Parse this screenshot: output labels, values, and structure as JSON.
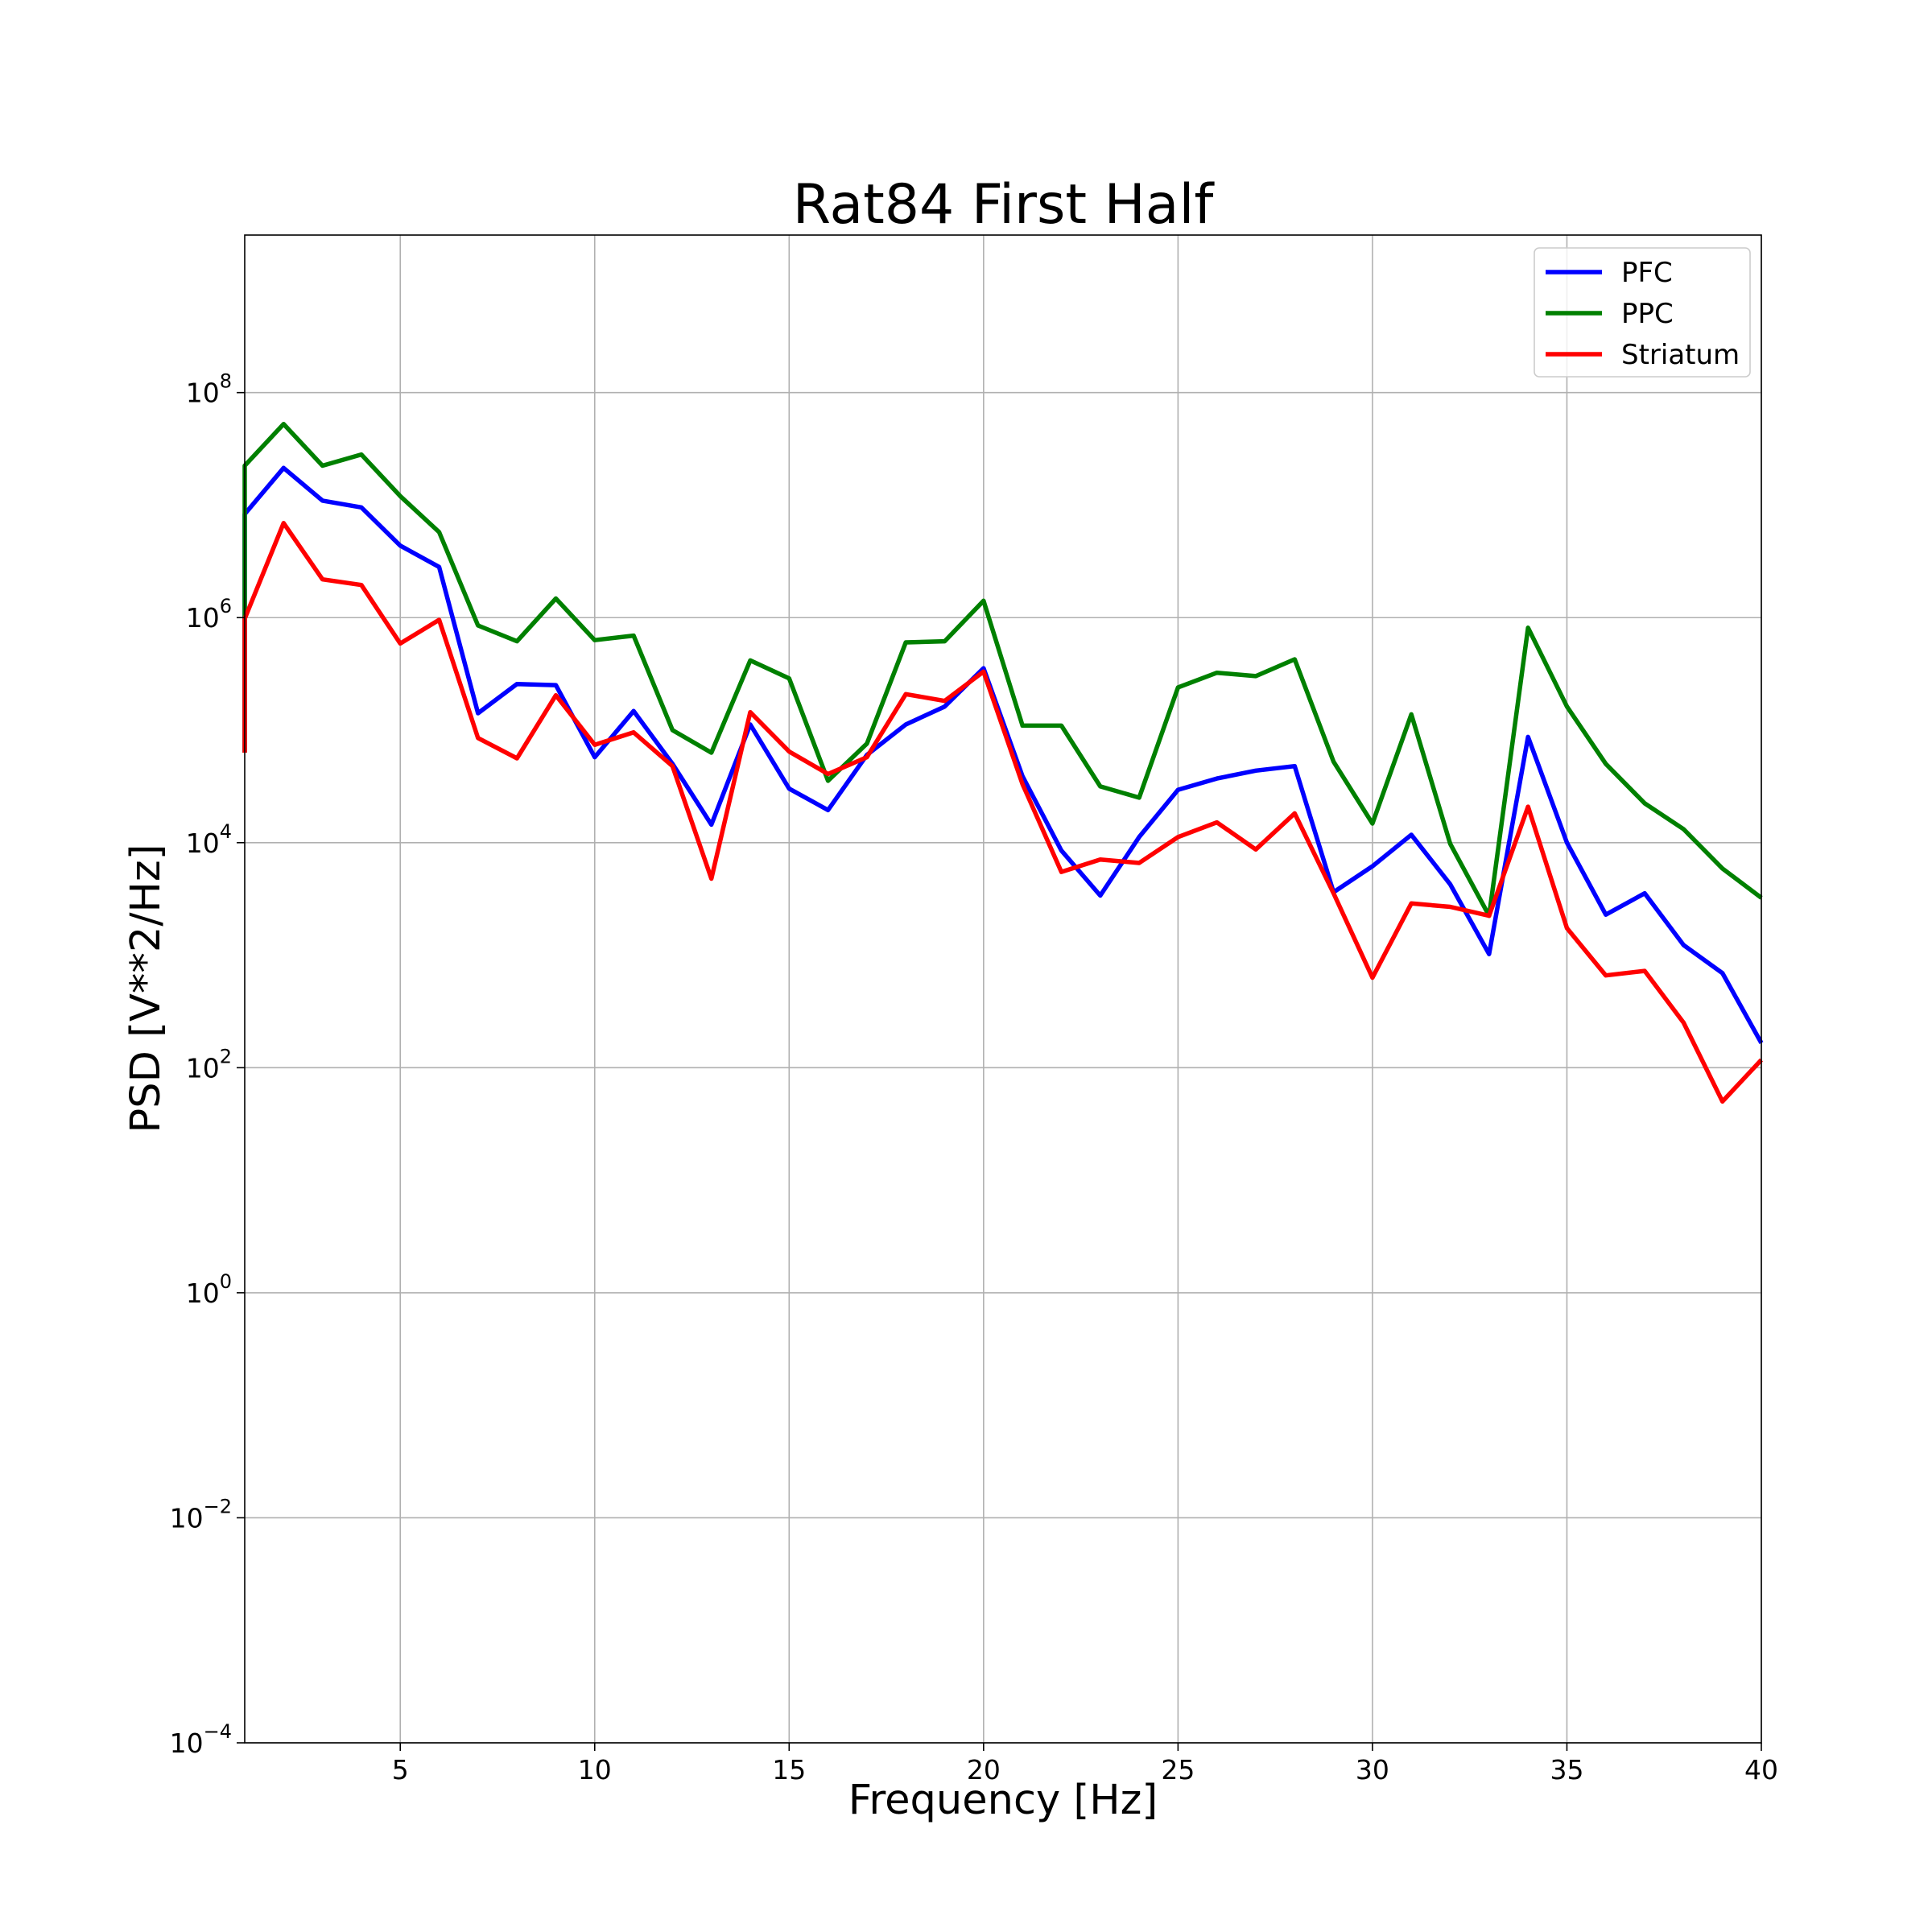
{
  "chart_data": {
    "type": "line",
    "title": "Rat84 First Half",
    "xlabel": "Frequency [Hz]",
    "ylabel": "PSD [V**2/Hz]",
    "xlim": [
      1,
      40
    ],
    "ylim_log10": [
      -4,
      9.4
    ],
    "yscale": "log",
    "grid": true,
    "legend_position": "top-right",
    "x_ticks": [
      5,
      10,
      15,
      20,
      25,
      30,
      35,
      40
    ],
    "y_ticks": [
      {
        "base": "10",
        "exp": "−4",
        "log10": -4
      },
      {
        "base": "10",
        "exp": "−2",
        "log10": -2
      },
      {
        "base": "10",
        "exp": "0",
        "log10": 0
      },
      {
        "base": "10",
        "exp": "2",
        "log10": 2
      },
      {
        "base": "10",
        "exp": "4",
        "log10": 4
      },
      {
        "base": "10",
        "exp": "6",
        "log10": 6
      },
      {
        "base": "10",
        "exp": "8",
        "log10": 8
      }
    ],
    "x": [
      1,
      2,
      3,
      4,
      5,
      6,
      7,
      8,
      9,
      10,
      11,
      12,
      13,
      14,
      15,
      16,
      17,
      18,
      19,
      20,
      21,
      22,
      23,
      24,
      25,
      26,
      27,
      28,
      29,
      30,
      31,
      32,
      33,
      34,
      35,
      36,
      37,
      38,
      39,
      40
    ],
    "series": [
      {
        "name": "PFC",
        "color": "#0000ff",
        "start_log10": 4.8,
        "log10_values": [
          6.92,
          7.33,
          7.04,
          6.98,
          6.64,
          6.45,
          5.15,
          5.41,
          5.4,
          4.76,
          5.17,
          4.7,
          4.16,
          5.05,
          4.48,
          4.29,
          4.78,
          5.05,
          5.21,
          5.55,
          4.59,
          3.93,
          3.53,
          4.05,
          4.47,
          4.57,
          4.64,
          4.68,
          3.56,
          3.79,
          4.07,
          3.63,
          3.01,
          4.94,
          4.0,
          3.36,
          3.55,
          3.09,
          2.84,
          2.22
        ]
      },
      {
        "name": "PPC",
        "color": "#008000",
        "start_log10": 4.8,
        "log10_values": [
          7.35,
          7.72,
          7.35,
          7.45,
          7.08,
          6.76,
          5.93,
          5.79,
          6.17,
          5.8,
          5.84,
          5.0,
          4.8,
          5.62,
          5.46,
          4.55,
          4.88,
          5.78,
          5.79,
          6.15,
          5.04,
          5.04,
          4.5,
          4.4,
          5.38,
          5.51,
          5.48,
          5.63,
          4.72,
          4.17,
          5.14,
          3.99,
          3.35,
          5.91,
          5.21,
          4.7,
          4.35,
          4.12,
          3.77,
          3.51
        ]
      },
      {
        "name": "Striatum",
        "color": "#ff0000",
        "start_log10": 4.8,
        "log10_values": [
          5.99,
          6.84,
          6.34,
          6.29,
          5.77,
          5.98,
          4.93,
          4.75,
          5.31,
          4.87,
          4.98,
          4.68,
          3.68,
          5.16,
          4.81,
          4.61,
          4.76,
          5.32,
          5.26,
          5.52,
          4.52,
          3.74,
          3.85,
          3.82,
          4.05,
          4.18,
          3.94,
          4.26,
          3.55,
          2.8,
          3.46,
          3.43,
          3.35,
          4.32,
          3.24,
          2.82,
          2.86,
          2.4,
          1.7,
          2.07
        ]
      }
    ]
  }
}
